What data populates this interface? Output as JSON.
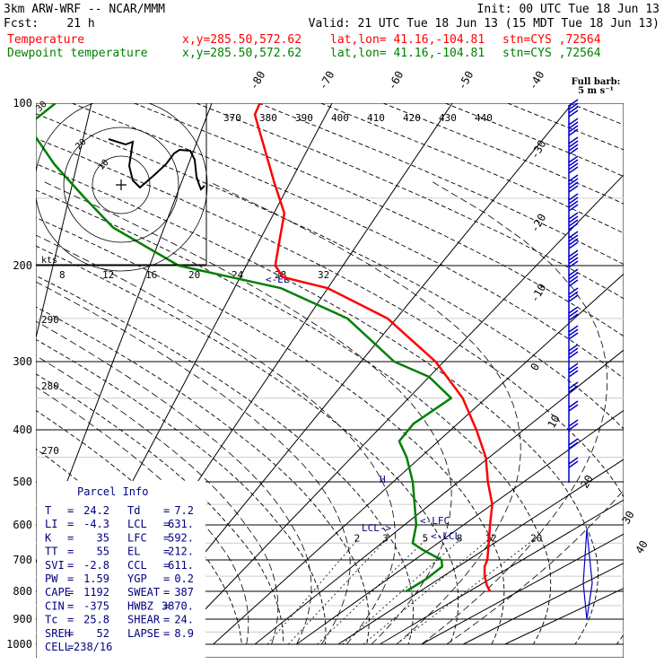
{
  "header": {
    "line1_left": "3km ARW-WRF -- NCAR/MMM",
    "line1_right": "Init: 00 UTC Tue 18 Jun 13",
    "line2_left": "Fcst:    21 h",
    "line2_right": "Valid: 21 UTC Tue 18 Jun 13 (15 MDT Tue 18 Jun 13)",
    "temp_label": "Temperature",
    "dew_label": "Dewpoint temperature",
    "xy": "x,y=285.50,572.62",
    "latlon": "lat,lon= 41.16,-104.81",
    "stn": "stn=CYS ,72564"
  },
  "colors": {
    "temperature": "#ff0000",
    "dewpoint": "#008000",
    "info": "#000080"
  },
  "barb_legend": {
    "line1": "Full barb:",
    "line2": "5 m s⁻¹"
  },
  "hodograph": {
    "rings": [
      "10",
      "20",
      "30"
    ],
    "units": "kts"
  },
  "chart_data": {
    "type": "skew-t log-p",
    "pressure_levels": [
      100,
      200,
      300,
      400,
      500,
      600,
      700,
      800,
      900,
      1000
    ],
    "temperature_isotherm_labels": [
      "-80",
      "-70",
      "-60",
      "-50",
      "-40",
      "-30",
      "-20",
      "-10",
      "0",
      "10",
      "20",
      "30",
      "40"
    ],
    "theta_labels": [
      "370",
      "380",
      "390",
      "400",
      "410",
      "420",
      "430",
      "440"
    ],
    "theta_left_labels": [
      "290",
      "280",
      "270"
    ],
    "thetae_labels": [
      "8",
      "12",
      "16",
      "20",
      "24",
      "28",
      "32"
    ],
    "mixing_ratio_labels": [
      "2",
      "3",
      "5",
      "8",
      "12",
      "20"
    ],
    "annotations": [
      "<-EL",
      "LCL->",
      "<-LFC",
      "<-LCL",
      "H"
    ],
    "temperature_profile": [
      {
        "p": 800,
        "t": 24.2
      },
      {
        "p": 780,
        "t": 21.5
      },
      {
        "p": 750,
        "t": 18.0
      },
      {
        "p": 720,
        "t": 15.0
      },
      {
        "p": 700,
        "t": 13.5
      },
      {
        "p": 650,
        "t": 9.0
      },
      {
        "p": 600,
        "t": 4.5
      },
      {
        "p": 550,
        "t": 0.0
      },
      {
        "p": 500,
        "t": -5.5
      },
      {
        "p": 450,
        "t": -10.5
      },
      {
        "p": 400,
        "t": -16.5
      },
      {
        "p": 350,
        "t": -23.0
      },
      {
        "p": 300,
        "t": -31.0
      },
      {
        "p": 250,
        "t": -41.0
      },
      {
        "p": 220,
        "t": -50.0
      },
      {
        "p": 210,
        "t": -55.5
      },
      {
        "p": 200,
        "t": -57.0
      },
      {
        "p": 180,
        "t": -58.0
      },
      {
        "p": 160,
        "t": -59.0
      },
      {
        "p": 140,
        "t": -61.5
      },
      {
        "p": 120,
        "t": -64.0
      },
      {
        "p": 105,
        "t": -66.0
      },
      {
        "p": 100,
        "t": -66.0
      }
    ],
    "dewpoint_profile": [
      {
        "p": 800,
        "t": 7.2
      },
      {
        "p": 760,
        "t": 7.5
      },
      {
        "p": 720,
        "t": 7.0
      },
      {
        "p": 700,
        "t": 5.0
      },
      {
        "p": 670,
        "t": -1.0
      },
      {
        "p": 650,
        "t": -4.5
      },
      {
        "p": 600,
        "t": -8.0
      },
      {
        "p": 500,
        "t": -17.0
      },
      {
        "p": 450,
        "t": -22.0
      },
      {
        "p": 420,
        "t": -25.5
      },
      {
        "p": 390,
        "t": -26.0
      },
      {
        "p": 350,
        "t": -24.5
      },
      {
        "p": 320,
        "t": -30.0
      },
      {
        "p": 300,
        "t": -36.0
      },
      {
        "p": 250,
        "t": -45.5
      },
      {
        "p": 220,
        "t": -55.0
      },
      {
        "p": 205,
        "t": -64.0
      },
      {
        "p": 200,
        "t": -67.0
      },
      {
        "p": 170,
        "t": -75.0
      },
      {
        "p": 150,
        "t": -78.5
      },
      {
        "p": 130,
        "t": -82.0
      },
      {
        "p": 110,
        "t": -85.0
      },
      {
        "p": 100,
        "t": -83.0
      }
    ]
  },
  "parcel_info": {
    "title": "Parcel Info",
    "rows": [
      [
        "T",
        "=",
        "24.2",
        "Td",
        "=",
        "7.2"
      ],
      [
        "LI",
        "=",
        "-4.3",
        "LCL",
        "=",
        "631."
      ],
      [
        "K",
        "=",
        "35",
        "LFC",
        "=",
        "592."
      ],
      [
        "TT",
        "=",
        "55",
        "EL",
        "=",
        "212."
      ],
      [
        "SVI",
        "=",
        "-2.8",
        "CCL",
        "=",
        "611."
      ],
      [
        "PW",
        "=",
        "1.59",
        "YGP",
        "=",
        "0.2"
      ],
      [
        "CAPE",
        "=",
        "1192",
        "SWEAT",
        "=",
        "387"
      ],
      [
        "CIN",
        "=",
        "-375",
        "HWBZ",
        "=",
        "3870."
      ],
      [
        "Tc",
        "=",
        "25.8",
        "SHEAR",
        "=",
        "24."
      ],
      [
        "SREH",
        "=",
        "52",
        "LAPSE",
        "=",
        "8.9"
      ],
      [
        "CELL",
        "=",
        "238/16",
        "",
        "",
        ""
      ]
    ]
  }
}
